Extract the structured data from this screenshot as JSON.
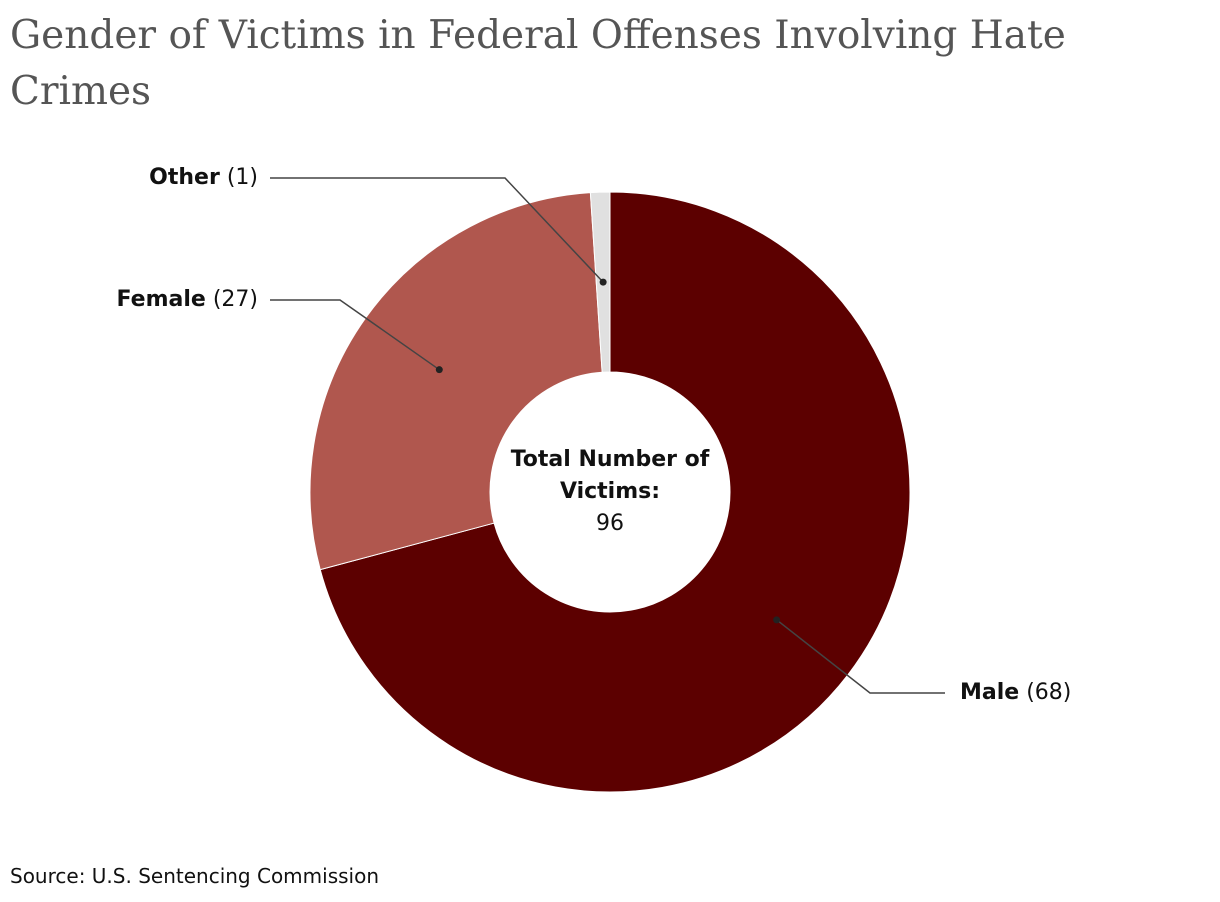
{
  "chart_data": {
    "type": "donut",
    "title": "Gender of Victims in Federal Offenses Involving Hate Crimes",
    "categories": [
      "Male",
      "Female",
      "Other"
    ],
    "values": [
      68,
      27,
      1
    ],
    "value_labels": [
      "(68)",
      "(27)",
      "(1)"
    ],
    "colors": [
      "#5c0000",
      "#b0574e",
      "#e0e0e0"
    ],
    "center_label": "Total Number of Victims:",
    "center_value": 96,
    "source": "Source: U.S. Sentencing Commission"
  }
}
